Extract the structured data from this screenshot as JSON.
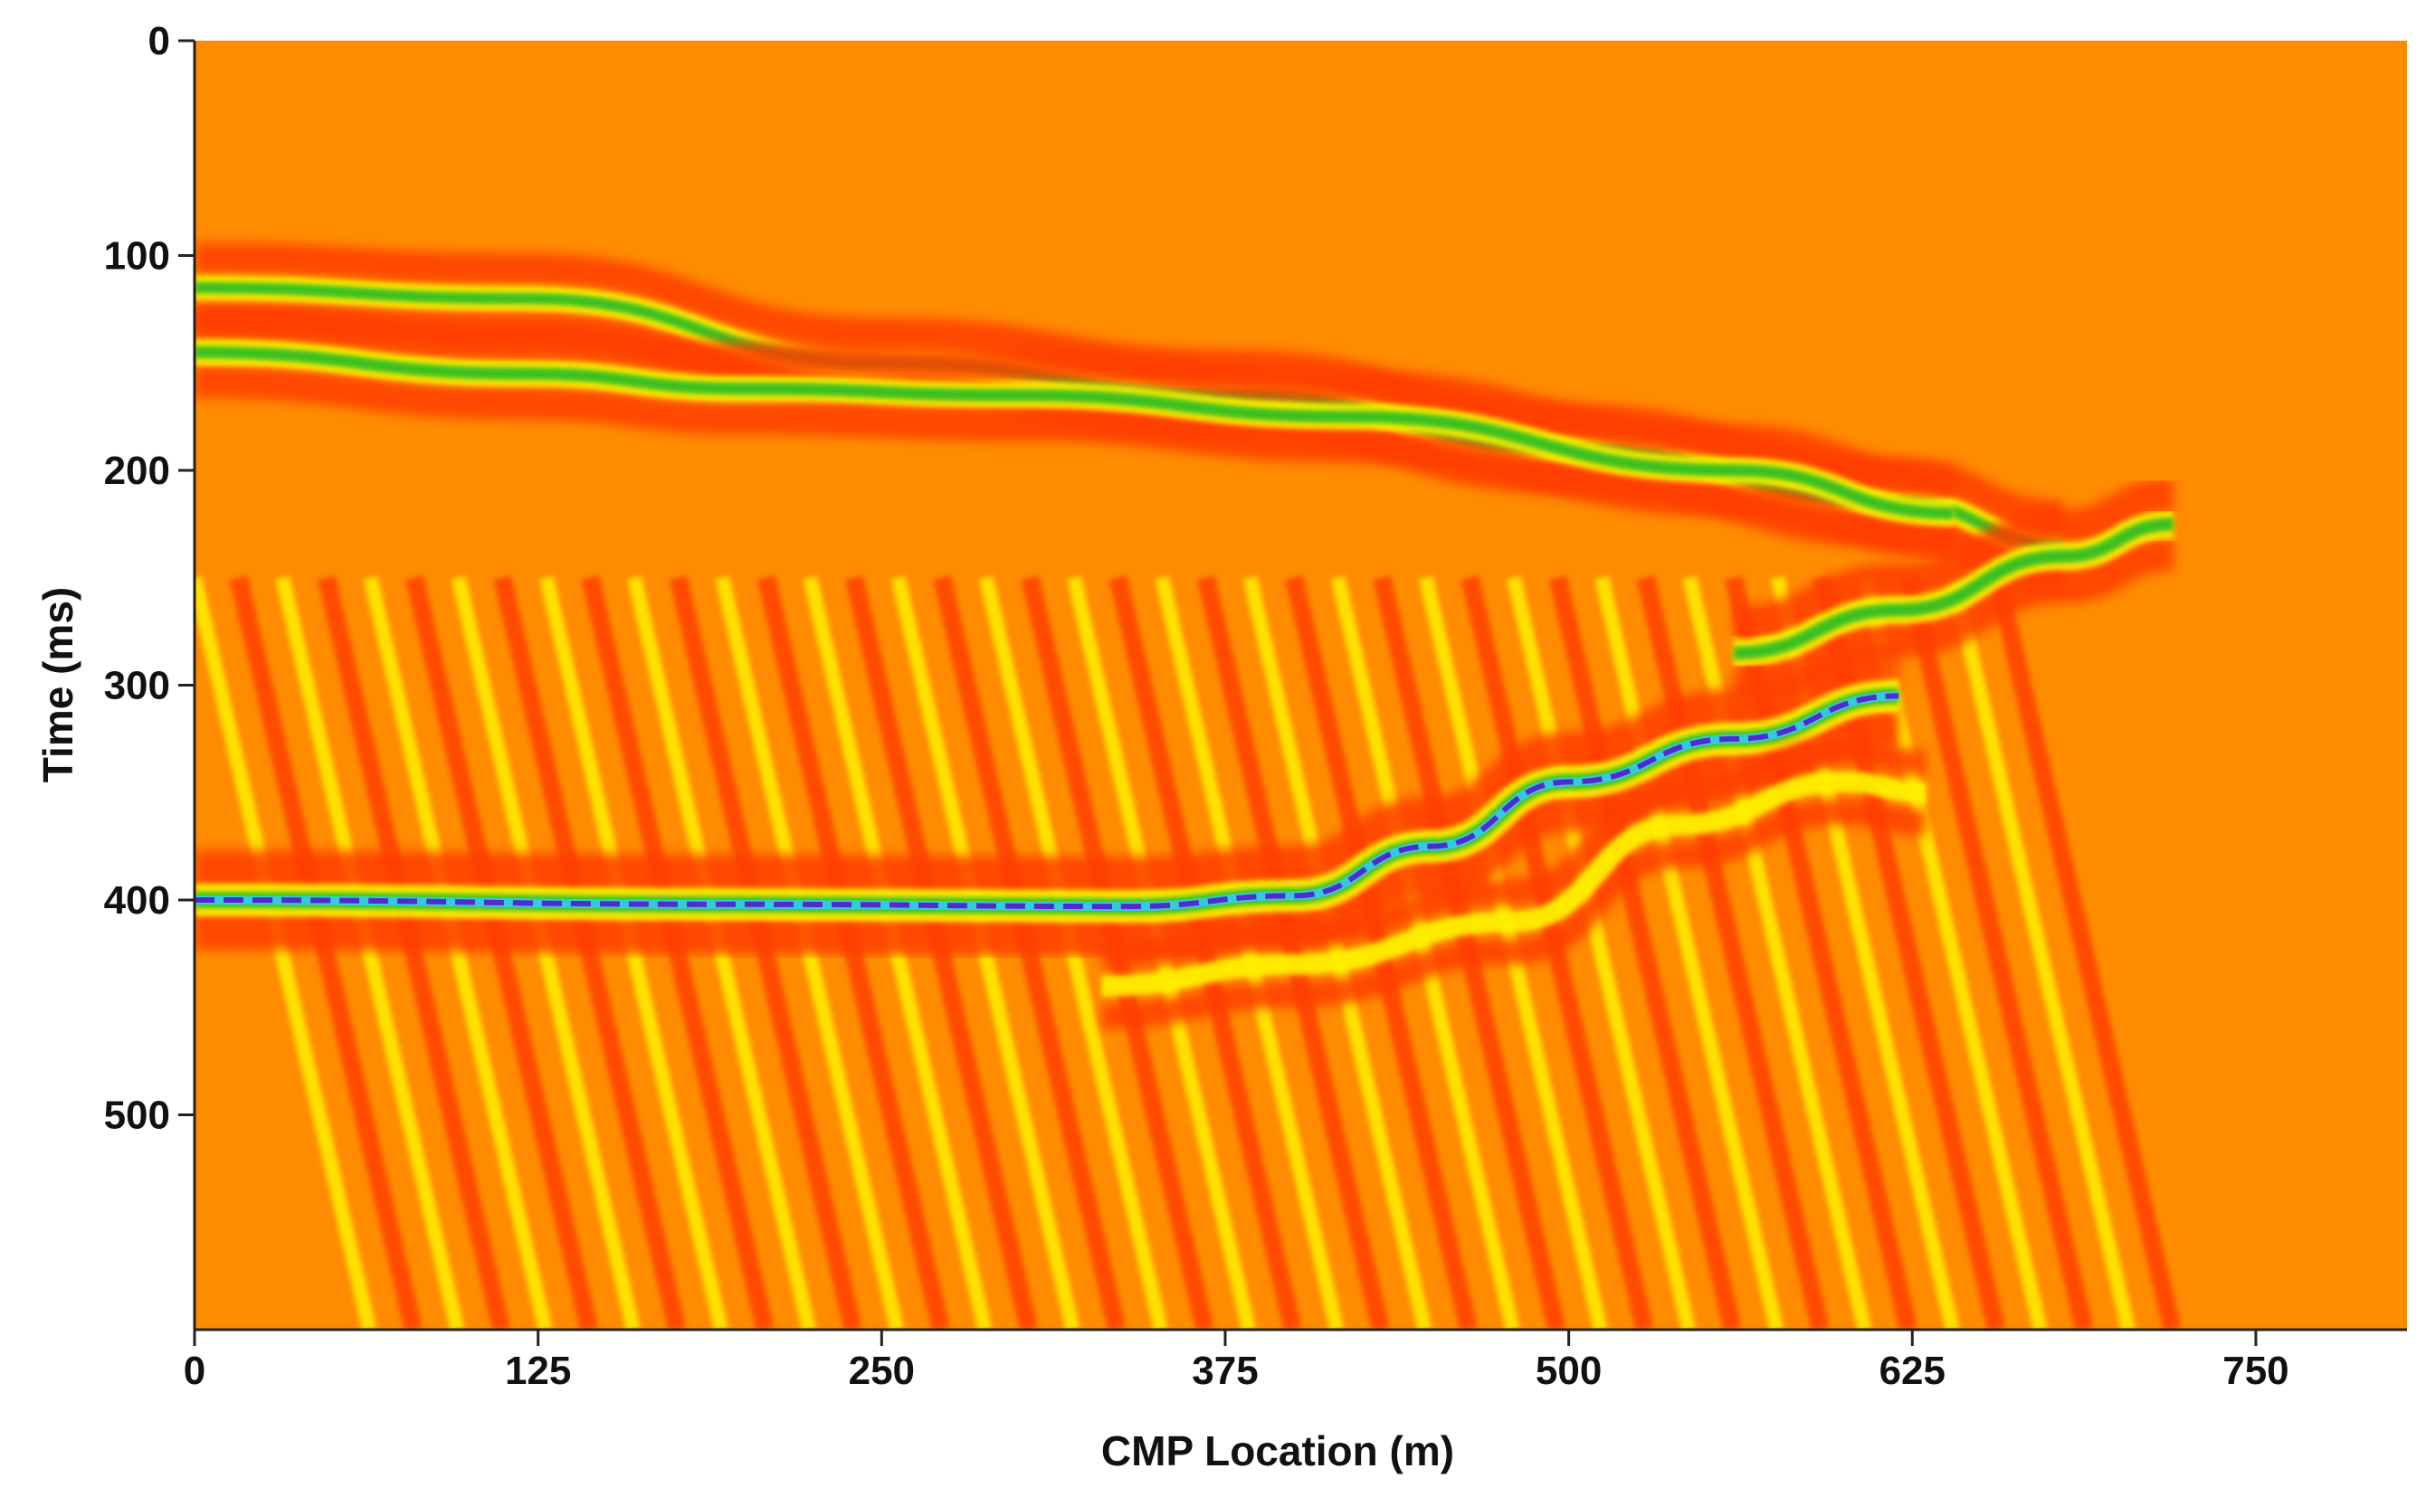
{
  "chart_data": {
    "type": "heatmap",
    "title": "",
    "xlabel": "CMP Location (m)",
    "ylabel": "Time (ms)",
    "xlim": [
      0,
      805
    ],
    "ylim": [
      600,
      0
    ],
    "y_inverted": true,
    "x_ticks": [
      0,
      125,
      250,
      375,
      500,
      625,
      750
    ],
    "x_tick_labels": [
      "0",
      "125",
      "250",
      "375",
      "500",
      "625",
      "750"
    ],
    "y_ticks": [
      0,
      100,
      200,
      300,
      400,
      500
    ],
    "y_tick_labels": [
      "0",
      "100",
      "200",
      "300",
      "400",
      "500"
    ],
    "grid": false,
    "colors": {
      "background": "#ff8c00",
      "trough": "#ff3c00",
      "peak": "#ffee00",
      "strong": "#22bb22",
      "stronger": "#33ccee",
      "strongest": "#5522cc",
      "saturated": "#ffffff"
    },
    "reflectors": [
      {
        "name": "",
        "points": [
          [
            0,
            115
          ],
          [
            120,
            120
          ],
          [
            250,
            150
          ],
          [
            380,
            165
          ],
          [
            500,
            190
          ],
          [
            620,
            215
          ],
          [
            680,
            235
          ]
        ],
        "amplitude": 0.7
      },
      {
        "name": "",
        "points": [
          [
            0,
            145
          ],
          [
            120,
            155
          ],
          [
            200,
            162
          ],
          [
            300,
            165
          ],
          [
            420,
            175
          ],
          [
            560,
            200
          ],
          [
            640,
            220
          ]
        ],
        "amplitude": 0.75
      },
      {
        "name": "",
        "points": [
          [
            0,
            400
          ],
          [
            200,
            402
          ],
          [
            340,
            403
          ],
          [
            400,
            398
          ],
          [
            450,
            375
          ],
          [
            500,
            345
          ],
          [
            560,
            325
          ],
          [
            620,
            305
          ]
        ],
        "amplitude": 1.0
      },
      {
        "name": "",
        "points": [
          [
            560,
            285
          ],
          [
            620,
            265
          ],
          [
            680,
            240
          ],
          [
            720,
            225
          ]
        ],
        "amplitude": 0.8
      },
      {
        "name": "",
        "points": [
          [
            330,
            440
          ],
          [
            400,
            430
          ],
          [
            480,
            410
          ],
          [
            540,
            365
          ],
          [
            600,
            345
          ],
          [
            630,
            350
          ]
        ],
        "amplitude": 0.55
      }
    ],
    "dipping_noise": {
      "x_start": 0,
      "x_end": 680,
      "t_start": 250,
      "t_end": 600,
      "slope_ms_per_m": 5.5,
      "spacing_m": 16
    }
  }
}
